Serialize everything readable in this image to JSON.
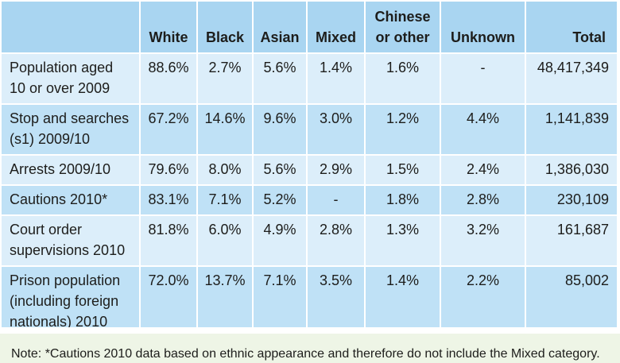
{
  "table": {
    "header": [
      "White",
      "Black",
      "Asian",
      "Mixed",
      "Chinese or other",
      "Unknown",
      "Total"
    ],
    "rows": [
      [
        "Population aged 10 or over 2009",
        "88.6%",
        "2.7%",
        "5.6%",
        "1.4%",
        "1.6%",
        "-",
        "48,417,349"
      ],
      [
        "Stop and searches (s1) 2009/10",
        "67.2%",
        "14.6%",
        "9.6%",
        "3.0%",
        "1.2%",
        "4.4%",
        "1,141,839"
      ],
      [
        "Arrests 2009/10",
        "79.6%",
        "8.0%",
        "5.6%",
        "2.9%",
        "1.5%",
        "2.4%",
        "1,386,030"
      ],
      [
        "Cautions 2010*",
        "83.1%",
        "7.1%",
        "5.2%",
        "-",
        "1.8%",
        "2.8%",
        "230,109"
      ],
      [
        "Court order supervisions 2010",
        "81.8%",
        "6.0%",
        "4.9%",
        "2.8%",
        "1.3%",
        "3.2%",
        "161,687"
      ],
      [
        "Prison population (including foreign nationals) 2010",
        "72.0%",
        "13.7%",
        "7.1%",
        "3.5%",
        "1.4%",
        "2.2%",
        "85,002"
      ]
    ]
  },
  "note": "Note: *Cautions 2010 data based on ethnic appearance and therefore do not include the Mixed category."
}
